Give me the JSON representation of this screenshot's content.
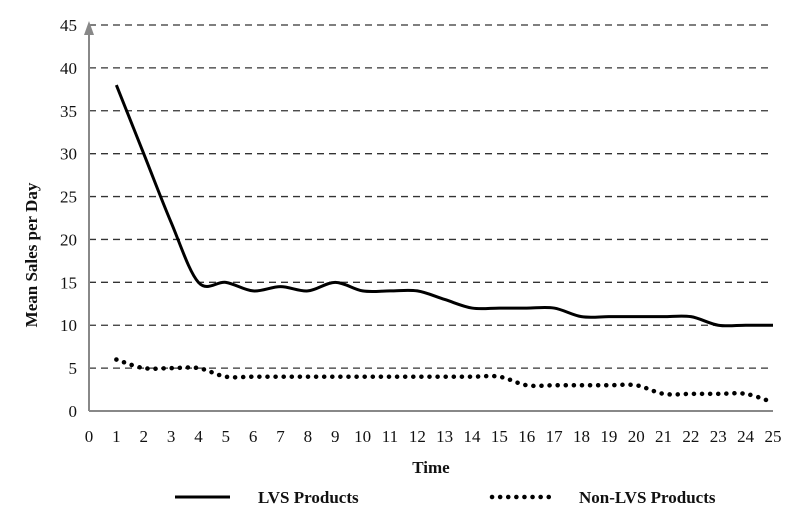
{
  "chart_data": {
    "type": "line",
    "xlabel": "Time",
    "ylabel": "Mean Sales per Day",
    "xlim": [
      0,
      25
    ],
    "ylim": [
      0,
      45
    ],
    "x_ticks": [
      0,
      1,
      2,
      3,
      4,
      5,
      6,
      7,
      8,
      9,
      10,
      11,
      12,
      13,
      14,
      15,
      16,
      17,
      18,
      19,
      20,
      21,
      22,
      23,
      24,
      25
    ],
    "y_ticks": [
      0,
      5,
      10,
      15,
      20,
      25,
      30,
      35,
      40,
      45
    ],
    "grid": "horizontal dashed",
    "legend_position": "bottom",
    "x": [
      1,
      2,
      3,
      4,
      5,
      6,
      7,
      8,
      9,
      10,
      11,
      12,
      13,
      14,
      15,
      16,
      17,
      18,
      19,
      20,
      21,
      22,
      23,
      24,
      25
    ],
    "series": [
      {
        "name": "LVS Products",
        "style": "solid",
        "color": "#000000",
        "values": [
          38,
          30,
          22,
          15,
          15,
          14,
          14.5,
          14,
          15,
          14,
          14,
          14,
          13,
          12,
          12,
          12,
          12,
          11,
          11,
          11,
          11,
          11,
          10,
          10,
          10
        ]
      },
      {
        "name": "Non-LVS Products",
        "style": "dotted",
        "color": "#000000",
        "values": [
          6,
          5,
          5,
          5,
          4,
          4,
          4,
          4,
          4,
          4,
          4,
          4,
          4,
          4,
          4,
          3,
          3,
          3,
          3,
          3,
          2,
          2,
          2,
          2,
          1
        ]
      }
    ]
  }
}
